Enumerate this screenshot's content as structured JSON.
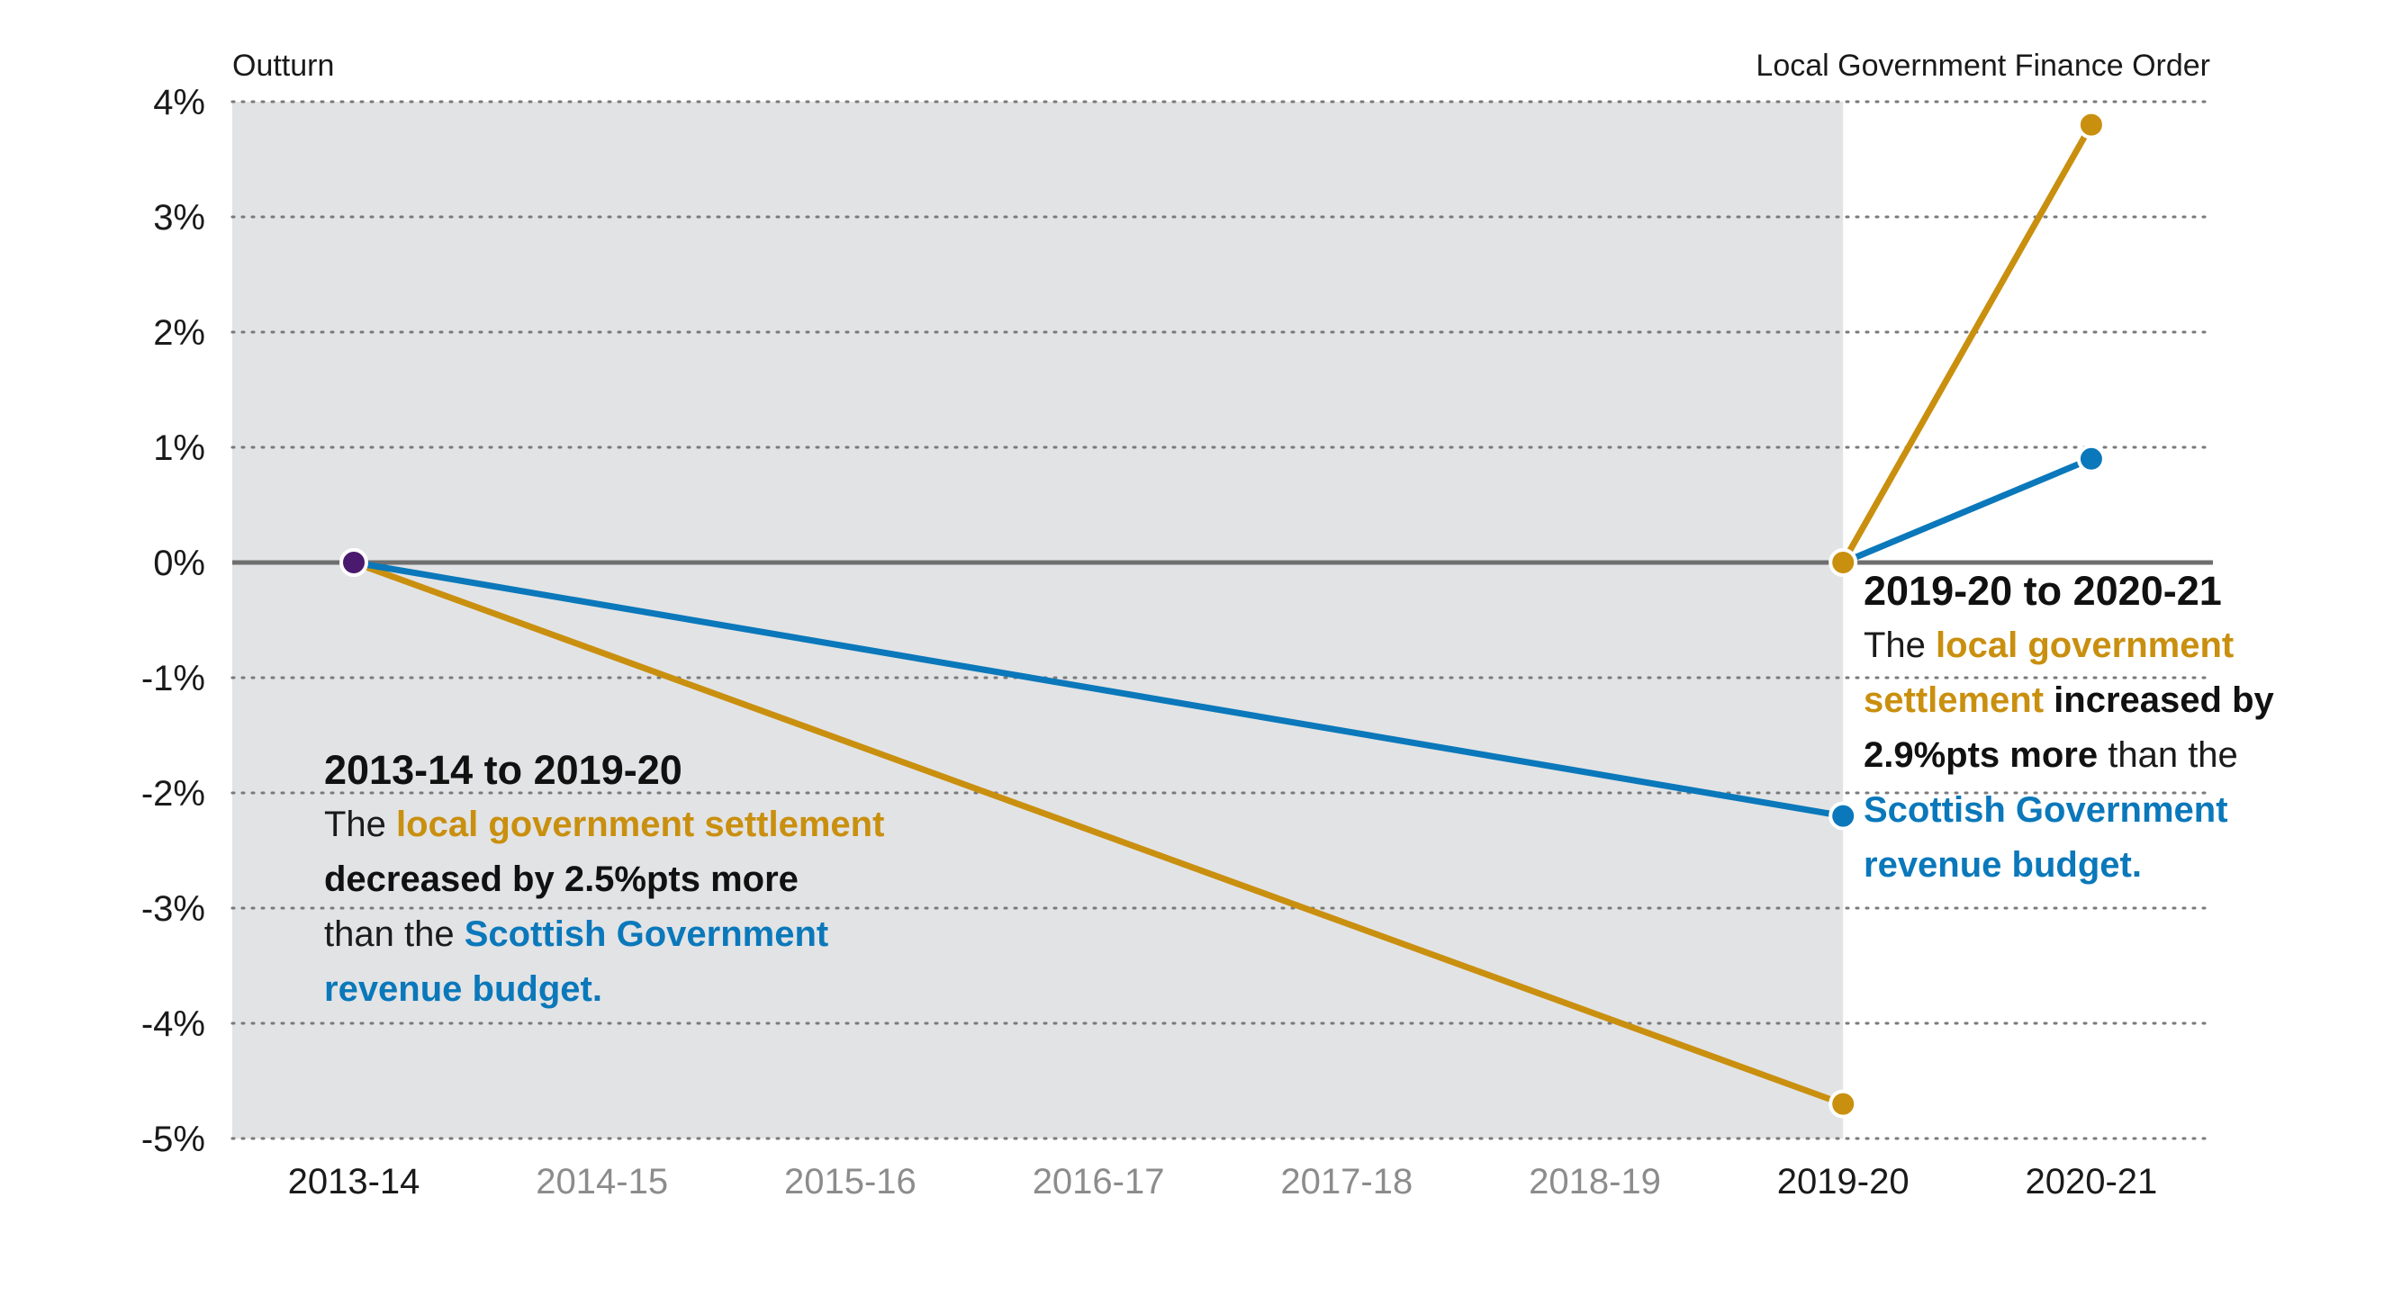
{
  "colors": {
    "shade": "#e2e3e5",
    "grid": "#7a7a7a",
    "zero_line": "#6f6f6f",
    "local_government": "#c98f0e",
    "scottish_government": "#0a78ba",
    "start_point": "#4a1a6e",
    "tick_text": "#1a1a1a",
    "tick_text_muted": "#8c8c8c"
  },
  "chart_data": {
    "type": "line",
    "categories": [
      "2013-14",
      "2014-15",
      "2015-16",
      "2016-17",
      "2017-18",
      "2018-19",
      "2019-20",
      "2020-21"
    ],
    "highlighted_categories": [
      "2013-14",
      "2019-20",
      "2020-21"
    ],
    "ylim": [
      -5,
      4
    ],
    "yticks": [
      4,
      3,
      2,
      1,
      0,
      -1,
      -2,
      -3,
      -4,
      -5
    ],
    "ytick_labels": [
      "4%",
      "3%",
      "2%",
      "1%",
      "0%",
      "-1%",
      "-2%",
      "-3%",
      "-4%",
      "-5%"
    ],
    "grid": "horizontal dotted",
    "shaded_region": {
      "from": "2013-14",
      "to": "2019-20",
      "label": "Outturn"
    },
    "right_region_label": "Local Government Finance Order",
    "series": [
      {
        "key": "local_government",
        "segments": [
          {
            "x": [
              "2013-14",
              "2019-20"
            ],
            "y": [
              0,
              -4.7
            ]
          },
          {
            "x": [
              "2019-20",
              "2020-21"
            ],
            "y": [
              0,
              3.8
            ]
          }
        ]
      },
      {
        "key": "scottish_government",
        "segments": [
          {
            "x": [
              "2013-14",
              "2019-20"
            ],
            "y": [
              0,
              -2.2
            ]
          },
          {
            "x": [
              "2019-20",
              "2020-21"
            ],
            "y": [
              0,
              0.9
            ]
          }
        ]
      }
    ],
    "start_point": {
      "x": "2013-14",
      "y": 0
    }
  },
  "annotations": {
    "left": {
      "title": "2013-14 to 2019-20",
      "t1": "The ",
      "t2": "local government settlement",
      "t3": "decreased by 2.5%pts more",
      "t4": "than the ",
      "t5": "Scottish Government",
      "t6": "revenue budget."
    },
    "right": {
      "title": "2019-20 to 2020-21",
      "t1": "The ",
      "t2": "local government",
      "t3": "settlement",
      "t4": " increased by",
      "t5": "2.9%pts more",
      "t6": " than the",
      "t7": "Scottish Government",
      "t8": "revenue budget."
    }
  }
}
